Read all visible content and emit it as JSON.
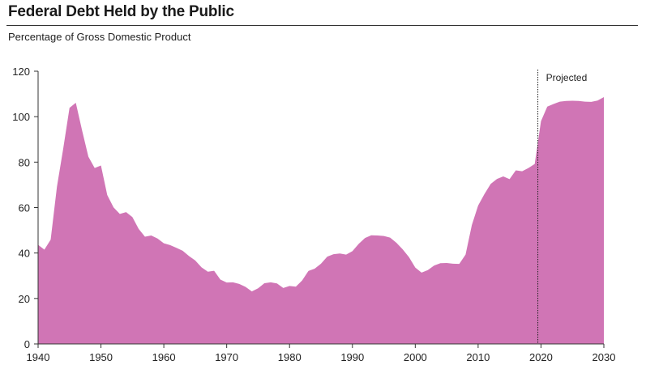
{
  "title": "Federal Debt Held by the Public",
  "subtitle": "Percentage of Gross Domestic Product",
  "chart_data": {
    "type": "area",
    "title": "Federal Debt Held by the Public",
    "subtitle": "Percentage of Gross Domestic Product",
    "xlabel": "",
    "ylabel": "",
    "xlim": [
      1940,
      2030
    ],
    "ylim": [
      0,
      120
    ],
    "x_ticks": [
      1940,
      1950,
      1960,
      1970,
      1980,
      1990,
      2000,
      2010,
      2020,
      2030
    ],
    "y_ticks": [
      0,
      20,
      40,
      60,
      80,
      100,
      120
    ],
    "grid": false,
    "fill_color": "#d075b5",
    "annotation": {
      "label": "Projected",
      "x": 2019.5
    },
    "x": [
      1940,
      1941,
      1942,
      1943,
      1944,
      1945,
      1946,
      1947,
      1948,
      1949,
      1950,
      1951,
      1952,
      1953,
      1954,
      1955,
      1956,
      1957,
      1958,
      1959,
      1960,
      1961,
      1962,
      1963,
      1964,
      1965,
      1966,
      1967,
      1968,
      1969,
      1970,
      1971,
      1972,
      1973,
      1974,
      1975,
      1976,
      1977,
      1978,
      1979,
      1980,
      1981,
      1982,
      1983,
      1984,
      1985,
      1986,
      1987,
      1988,
      1989,
      1990,
      1991,
      1992,
      1993,
      1994,
      1995,
      1996,
      1997,
      1998,
      1999,
      2000,
      2001,
      2002,
      2003,
      2004,
      2005,
      2006,
      2007,
      2008,
      2009,
      2010,
      2011,
      2012,
      2013,
      2014,
      2015,
      2016,
      2017,
      2018,
      2019,
      2020,
      2021,
      2022,
      2023,
      2024,
      2025,
      2026,
      2027,
      2028,
      2029,
      2030
    ],
    "values": [
      43.6,
      41.5,
      45.9,
      69.2,
      86.0,
      103.9,
      106.1,
      93.9,
      82.4,
      77.4,
      78.5,
      65.5,
      60.1,
      57.2,
      58.0,
      55.8,
      50.6,
      47.2,
      47.7,
      46.4,
      44.3,
      43.5,
      42.3,
      41.0,
      38.7,
      36.7,
      33.7,
      31.8,
      32.2,
      28.3,
      27.0,
      27.1,
      26.4,
      25.1,
      23.1,
      24.5,
      26.7,
      27.1,
      26.6,
      24.6,
      25.5,
      25.2,
      27.9,
      32.1,
      33.1,
      35.3,
      38.4,
      39.5,
      39.8,
      39.3,
      40.8,
      44.0,
      46.6,
      47.8,
      47.7,
      47.5,
      46.8,
      44.5,
      41.6,
      38.2,
      33.6,
      31.4,
      32.5,
      34.5,
      35.5,
      35.6,
      35.3,
      35.2,
      39.3,
      52.3,
      60.9,
      65.9,
      70.4,
      72.6,
      73.7,
      72.5,
      76.4,
      76.0,
      77.4,
      79.2,
      98.0,
      104.4,
      105.6,
      106.6,
      106.9,
      107.0,
      106.9,
      106.6,
      106.5,
      107.1,
      108.6
    ]
  }
}
